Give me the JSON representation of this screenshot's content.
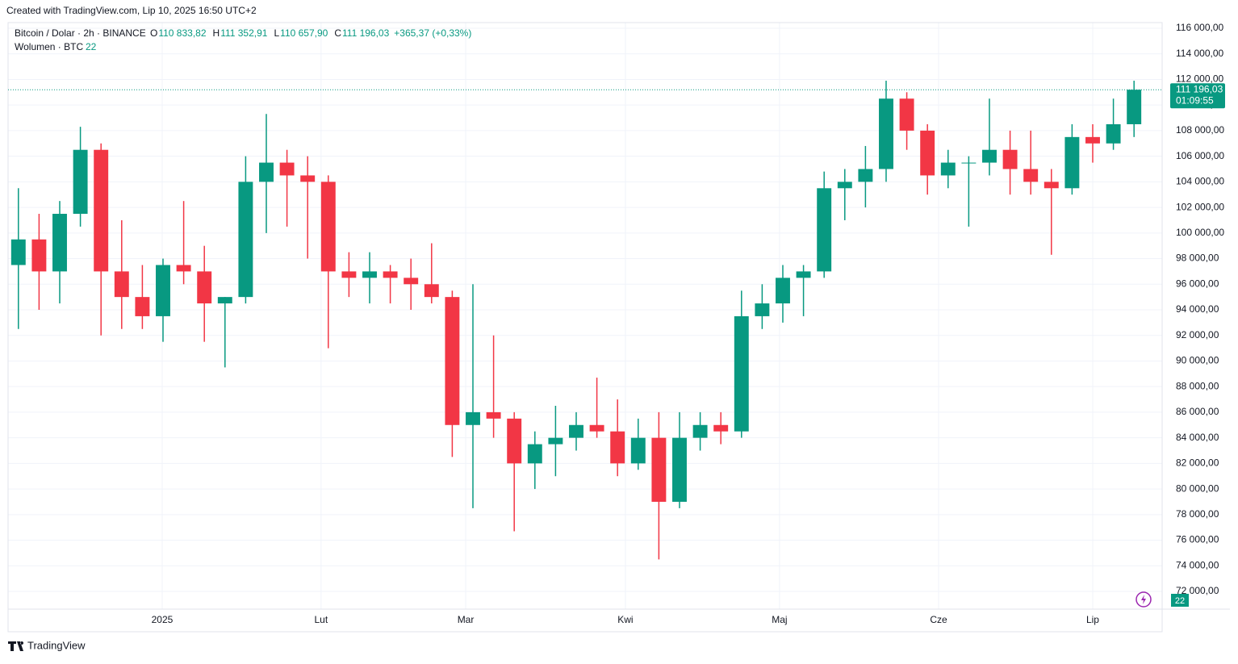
{
  "header": {
    "created": "Created with TradingView.com, Lip 10, 2025 16:50 UTC+2",
    "brand": "TradingView"
  },
  "chart_data": {
    "type": "candlestick",
    "title": "Bitcoin / Dolar · 2h · BINANCE",
    "ohlc_legend": [
      {
        "key": "O",
        "value": "110 833,82"
      },
      {
        "key": "H",
        "value": "111 352,91"
      },
      {
        "key": "L",
        "value": "110 657,90"
      },
      {
        "key": "C",
        "value": "111 196,03"
      }
    ],
    "change": "+365,37 (+0,33%)",
    "volume_title": "Wolumen · BTC",
    "volume_value": "22",
    "up_color": "#089981",
    "down_color": "#f23645",
    "open": [
      97500,
      99500,
      97000,
      101500,
      106500,
      97000,
      95000,
      93500,
      97500,
      97000,
      94500,
      95000,
      104000,
      105500,
      104500,
      104000,
      97000,
      96500,
      97000,
      96500,
      96000,
      95000,
      85000,
      86000,
      85500,
      82000,
      83500,
      84000,
      85000,
      84500,
      82000,
      84000,
      79000,
      84000,
      85000,
      84500,
      93500,
      94500,
      96500,
      97000,
      103500,
      104000,
      105000,
      110500,
      108000,
      104500,
      105500,
      105500,
      106500,
      105000,
      104000,
      103500,
      107500,
      107000,
      108500
    ],
    "high": [
      103500,
      101500,
      102500,
      108300,
      107000,
      101000,
      97500,
      98000,
      102500,
      99000,
      95000,
      106000,
      109300,
      106500,
      106000,
      104500,
      98500,
      98500,
      97500,
      98000,
      99200,
      95500,
      96000,
      92000,
      86000,
      84500,
      86500,
      86000,
      88700,
      87000,
      85500,
      86000,
      86000,
      86000,
      86000,
      95500,
      96000,
      97500,
      97500,
      104800,
      105000,
      106800,
      111900,
      111000,
      108500,
      106500,
      106000,
      110500,
      108000,
      108000,
      105000,
      108500,
      108500,
      110500,
      111900
    ],
    "low": [
      92500,
      94000,
      94500,
      100500,
      92000,
      92500,
      92500,
      91500,
      96000,
      91500,
      89500,
      94500,
      100000,
      100500,
      98000,
      91000,
      95000,
      94500,
      94500,
      94000,
      94500,
      82500,
      78500,
      84000,
      76700,
      80000,
      81000,
      83000,
      84000,
      81000,
      81500,
      74500,
      78500,
      83000,
      83500,
      84000,
      92500,
      93000,
      93500,
      96500,
      101000,
      102000,
      104000,
      106500,
      103000,
      103500,
      100500,
      104500,
      103000,
      103000,
      98300,
      103000,
      105500,
      106500,
      107500
    ],
    "close": [
      99500,
      97000,
      101500,
      106500,
      97000,
      95000,
      93500,
      97500,
      97000,
      94500,
      95000,
      104000,
      105500,
      104500,
      104000,
      97000,
      96500,
      97000,
      96500,
      96000,
      95000,
      85000,
      86000,
      85500,
      82000,
      83500,
      84000,
      85000,
      84500,
      82000,
      84000,
      79000,
      84000,
      85000,
      84500,
      93500,
      94500,
      96500,
      97000,
      103500,
      104000,
      105000,
      110500,
      108000,
      104500,
      105500,
      105500,
      106500,
      105000,
      104000,
      103500,
      107500,
      107000,
      108500,
      111196.03
    ],
    "last_price": {
      "value": 111196.03,
      "label": "111 196,03"
    },
    "countdown": "01:09:55",
    "xlim": [
      0,
      55.86
    ],
    "xticks": [
      {
        "value": 7.46,
        "label": "2025"
      },
      {
        "value": 15.15,
        "label": "Lut"
      },
      {
        "value": 22.15,
        "label": "Mar"
      },
      {
        "value": 29.88,
        "label": "Kwi"
      },
      {
        "value": 37.34,
        "label": "Maj"
      },
      {
        "value": 45.04,
        "label": "Cze"
      },
      {
        "value": 52.5,
        "label": "Lip"
      }
    ],
    "ylim": [
      72000,
      116000
    ],
    "yticks": [
      {
        "value": 72000,
        "label": "72 000,00"
      },
      {
        "value": 74000,
        "label": "74 000,00"
      },
      {
        "value": 76000,
        "label": "76 000,00"
      },
      {
        "value": 78000,
        "label": "78 000,00"
      },
      {
        "value": 80000,
        "label": "80 000,00"
      },
      {
        "value": 82000,
        "label": "82 000,00"
      },
      {
        "value": 84000,
        "label": "84 000,00"
      },
      {
        "value": 86000,
        "label": "86 000,00"
      },
      {
        "value": 88000,
        "label": "88 000,00"
      },
      {
        "value": 90000,
        "label": "90 000,00"
      },
      {
        "value": 92000,
        "label": "92 000,00"
      },
      {
        "value": 94000,
        "label": "94 000,00"
      },
      {
        "value": 96000,
        "label": "96 000,00"
      },
      {
        "value": 98000,
        "label": "98 000,00"
      },
      {
        "value": 100000,
        "label": "100 000,00"
      },
      {
        "value": 102000,
        "label": "102 000,00"
      },
      {
        "value": 104000,
        "label": "104 000,00"
      },
      {
        "value": 106000,
        "label": "106 000,00"
      },
      {
        "value": 108000,
        "label": "108 000,00"
      },
      {
        "value": 110000,
        "label": "110 000,00"
      },
      {
        "value": 112000,
        "label": "112 000,00"
      },
      {
        "value": 114000,
        "label": "114 000,00"
      },
      {
        "value": 116000,
        "label": "116 000,00"
      }
    ],
    "grid": true
  }
}
